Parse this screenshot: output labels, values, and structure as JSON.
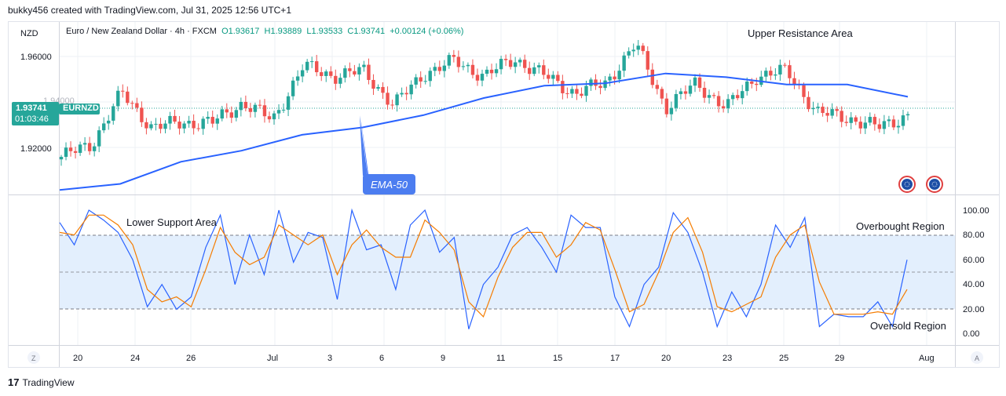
{
  "header": {
    "created_by": "bukky456 created with TradingView.com, Jul 31, 2025 12:56 UTC+1"
  },
  "chart_header": {
    "currency": "NZD",
    "pair": "Euro / New Zealand Dollar · 4h · FXCM",
    "open": "O1.93617",
    "high": "H1.93889",
    "low": "L1.93533",
    "close": "C1.93741",
    "change": "+0.00124 (+0.06%)"
  },
  "price_tag": {
    "price": "1.93741",
    "symbol": "EURNZD",
    "countdown": "01:03:46",
    "hidden_label": "1.94000"
  },
  "price_axis": [
    "1.96000",
    "1.92000"
  ],
  "osc_axis": [
    "100.00",
    "80.00",
    "60.00",
    "40.00",
    "20.00",
    "0.00"
  ],
  "time_axis": [
    "20",
    "24",
    "26",
    "Jul",
    "3",
    "6",
    "9",
    "11",
    "15",
    "17",
    "20",
    "23",
    "25",
    "29",
    "Aug"
  ],
  "annotations": {
    "upper_resistance": "Upper Resistance Area",
    "ema_label": "EMA-50",
    "lower_support": "Lower Support Area",
    "overbought": "Overbought Region",
    "oversold": "Oversold Region"
  },
  "buttons": {
    "z": "Z",
    "a": "A"
  },
  "footer": {
    "brand": "TradingView",
    "logo": "17"
  },
  "colors": {
    "up": "#26a69a",
    "down": "#ef5350",
    "ema": "#2962ff",
    "k_line": "#2962ff",
    "d_line": "#f57c00",
    "osc_band": "#e3effd"
  },
  "chart_data": {
    "type": "candlestick",
    "symbol": "EURNZD",
    "timeframe": "4h",
    "ylim": [
      1.905,
      1.975
    ],
    "last_close": 1.93741,
    "ema50_path_price": [
      1.9065,
      1.909,
      1.918,
      1.9225,
      1.929,
      1.932,
      1.937,
      1.944,
      1.949,
      1.95,
      1.954,
      1.9525,
      1.9495,
      1.9495,
      1.9445
    ],
    "close_path_price": [
      1.92,
      1.925,
      1.946,
      1.932,
      1.934,
      1.934,
      1.942,
      1.935,
      1.957,
      1.953,
      1.955,
      1.941,
      1.954,
      1.959,
      1.953,
      1.96,
      1.953,
      1.946,
      1.95,
      1.966,
      1.94,
      1.95,
      1.94,
      1.953,
      1.955,
      1.938,
      1.936,
      1.932,
      1.937
    ],
    "oscillator": {
      "type": "stochastic",
      "ylim": [
        0,
        100
      ],
      "levels": [
        80,
        50,
        20
      ],
      "k_series": [
        90,
        72,
        100,
        92,
        82,
        60,
        22,
        40,
        20,
        30,
        70,
        96,
        40,
        80,
        48,
        100,
        58,
        82,
        78,
        28,
        100,
        68,
        72,
        36,
        88,
        100,
        66,
        78,
        4,
        40,
        54,
        80,
        86,
        70,
        50,
        96,
        86,
        86,
        30,
        6,
        40,
        54,
        98,
        82,
        50,
        6,
        34,
        14,
        40,
        88,
        70,
        94,
        6,
        16,
        14,
        14,
        26,
        6,
        60
      ],
      "d_series": [
        82,
        80,
        96,
        96,
        88,
        72,
        36,
        26,
        30,
        22,
        52,
        86,
        66,
        56,
        62,
        88,
        80,
        72,
        80,
        48,
        72,
        84,
        70,
        62,
        62,
        92,
        82,
        68,
        26,
        14,
        46,
        70,
        82,
        82,
        62,
        72,
        90,
        84,
        52,
        18,
        24,
        50,
        82,
        94,
        66,
        22,
        18,
        24,
        30,
        62,
        80,
        88,
        42,
        16,
        16,
        16,
        18,
        16,
        36
      ]
    }
  }
}
